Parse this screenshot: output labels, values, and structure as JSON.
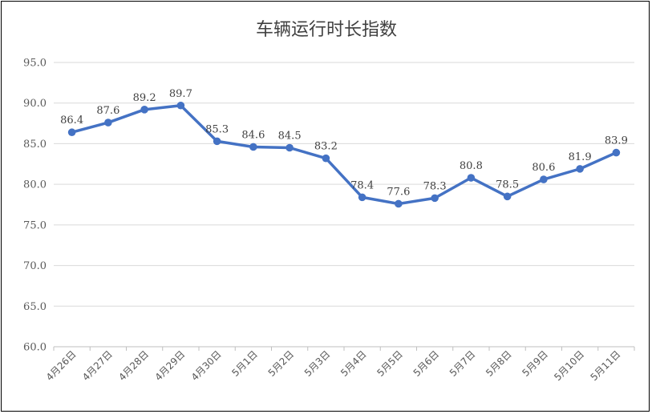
{
  "chart_data": {
    "type": "line",
    "title": "车辆运行时长指数",
    "categories": [
      "4月26日",
      "4月27日",
      "4月28日",
      "4月29日",
      "4月30日",
      "5月1日",
      "5月2日",
      "5月3日",
      "5月4日",
      "5月5日",
      "5月6日",
      "5月7日",
      "5月8日",
      "5月9日",
      "5月10日",
      "5月11日"
    ],
    "series": [
      {
        "values": [
          86.4,
          87.6,
          89.2,
          89.7,
          85.3,
          84.6,
          84.5,
          83.2,
          78.4,
          77.6,
          78.3,
          80.8,
          78.5,
          80.6,
          81.9,
          83.9
        ]
      }
    ],
    "data_labels": [
      "86.4",
      "87.6",
      "89.2",
      "89.7",
      "85.3",
      "84.6",
      "84.5",
      "83.2",
      "78.4",
      "77.6",
      "78.3",
      "80.8",
      "78.5",
      "80.6",
      "81.9",
      "83.9"
    ],
    "ylim": [
      60,
      95
    ],
    "yticks": [
      "60.0",
      "65.0",
      "70.0",
      "75.0",
      "80.0",
      "85.0",
      "90.0",
      "95.0"
    ],
    "grid": true,
    "legend": "none",
    "line_color": "#4472C4"
  }
}
